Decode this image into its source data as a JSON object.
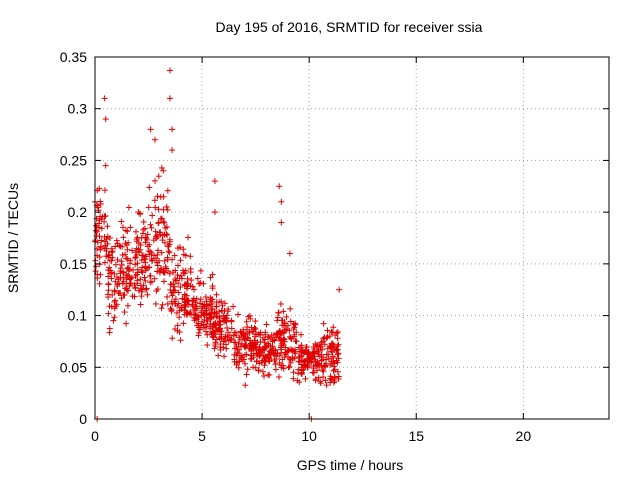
{
  "chart_data": {
    "type": "scatter",
    "title": "Day 195 of 2016, SRMTID for receiver ssia",
    "xlabel": "GPS time / hours",
    "ylabel": "SRMTID / TECUs",
    "xlim": [
      0,
      24
    ],
    "ylim": [
      0,
      0.35
    ],
    "xticks": [
      0,
      5,
      10,
      15,
      20
    ],
    "xtick_labels": [
      "0",
      "5",
      "10",
      "15",
      "20"
    ],
    "yticks": [
      0,
      0.05,
      0.1,
      0.15,
      0.2,
      0.25,
      0.3,
      0.35
    ],
    "ytick_labels": [
      "0",
      "0.05",
      "0.1",
      "0.15",
      "0.2",
      "0.25",
      "0.3",
      "0.35"
    ],
    "grid": true,
    "marker": "+",
    "series": [
      {
        "name": "SRMTID",
        "color": "#e00000",
        "segments": [
          {
            "x_start": 0.0,
            "x_end": 0.6,
            "y_min": 0.1,
            "y_max": 0.25
          },
          {
            "x_start": 0.6,
            "x_end": 1.5,
            "y_min": 0.07,
            "y_max": 0.21
          },
          {
            "x_start": 1.5,
            "x_end": 2.5,
            "y_min": 0.09,
            "y_max": 0.22
          },
          {
            "x_start": 2.5,
            "x_end": 3.5,
            "y_min": 0.08,
            "y_max": 0.26
          },
          {
            "x_start": 3.5,
            "x_end": 4.5,
            "y_min": 0.07,
            "y_max": 0.18
          },
          {
            "x_start": 4.5,
            "x_end": 5.5,
            "y_min": 0.06,
            "y_max": 0.15
          },
          {
            "x_start": 5.5,
            "x_end": 6.5,
            "y_min": 0.05,
            "y_max": 0.13
          },
          {
            "x_start": 6.5,
            "x_end": 7.5,
            "y_min": 0.03,
            "y_max": 0.11
          },
          {
            "x_start": 7.5,
            "x_end": 8.5,
            "y_min": 0.03,
            "y_max": 0.1
          },
          {
            "x_start": 8.5,
            "x_end": 9.5,
            "y_min": 0.03,
            "y_max": 0.12
          },
          {
            "x_start": 9.5,
            "x_end": 10.5,
            "y_min": 0.03,
            "y_max": 0.09
          },
          {
            "x_start": 10.5,
            "x_end": 11.4,
            "y_min": 0.02,
            "y_max": 0.1
          }
        ],
        "peaks": [
          {
            "x": 0.45,
            "y": 0.31
          },
          {
            "x": 0.5,
            "y": 0.29
          },
          {
            "x": 0.5,
            "y": 0.245
          },
          {
            "x": 2.6,
            "y": 0.28
          },
          {
            "x": 2.8,
            "y": 0.27
          },
          {
            "x": 3.5,
            "y": 0.337
          },
          {
            "x": 3.5,
            "y": 0.31
          },
          {
            "x": 3.6,
            "y": 0.28
          },
          {
            "x": 3.6,
            "y": 0.26
          },
          {
            "x": 5.6,
            "y": 0.23
          },
          {
            "x": 5.6,
            "y": 0.2
          },
          {
            "x": 8.6,
            "y": 0.225
          },
          {
            "x": 8.7,
            "y": 0.21
          },
          {
            "x": 8.7,
            "y": 0.19
          },
          {
            "x": 9.1,
            "y": 0.16
          },
          {
            "x": 11.4,
            "y": 0.125
          },
          {
            "x": 0.1,
            "y": 0.0
          },
          {
            "x": 10.1,
            "y": 0.0
          }
        ]
      }
    ]
  }
}
